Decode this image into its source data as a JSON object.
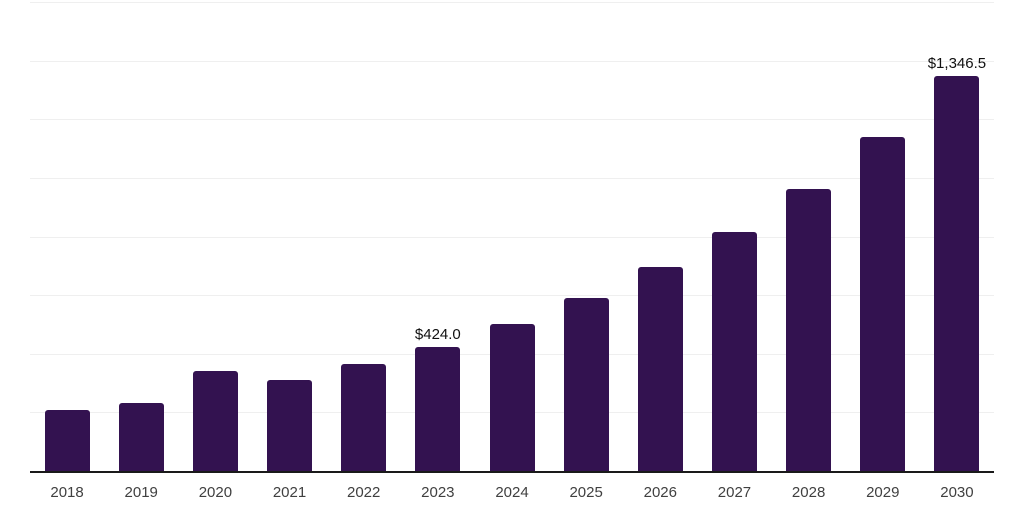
{
  "chart_data": {
    "type": "bar",
    "categories": [
      "2018",
      "2019",
      "2020",
      "2021",
      "2022",
      "2023",
      "2024",
      "2025",
      "2026",
      "2027",
      "2028",
      "2029",
      "2030"
    ],
    "values": [
      208,
      231,
      341,
      312,
      364,
      424.0,
      500,
      589,
      695,
      814,
      963,
      1140,
      1346.5
    ],
    "data_labels": [
      {
        "category": "2023",
        "text": "$424.0"
      },
      {
        "category": "2030",
        "text": "$1,346.5"
      }
    ],
    "title": "",
    "xlabel": "",
    "ylabel": "",
    "ylim": [
      0,
      1600
    ],
    "gridline_step": 200,
    "grid": true,
    "legend_position": "none",
    "colors": {
      "bar": "#331250",
      "gridline": "#efefef",
      "axis_line": "#1a1a1a",
      "data_label": "#111111",
      "tick_label": "#404040",
      "background": "#ffffff"
    }
  }
}
